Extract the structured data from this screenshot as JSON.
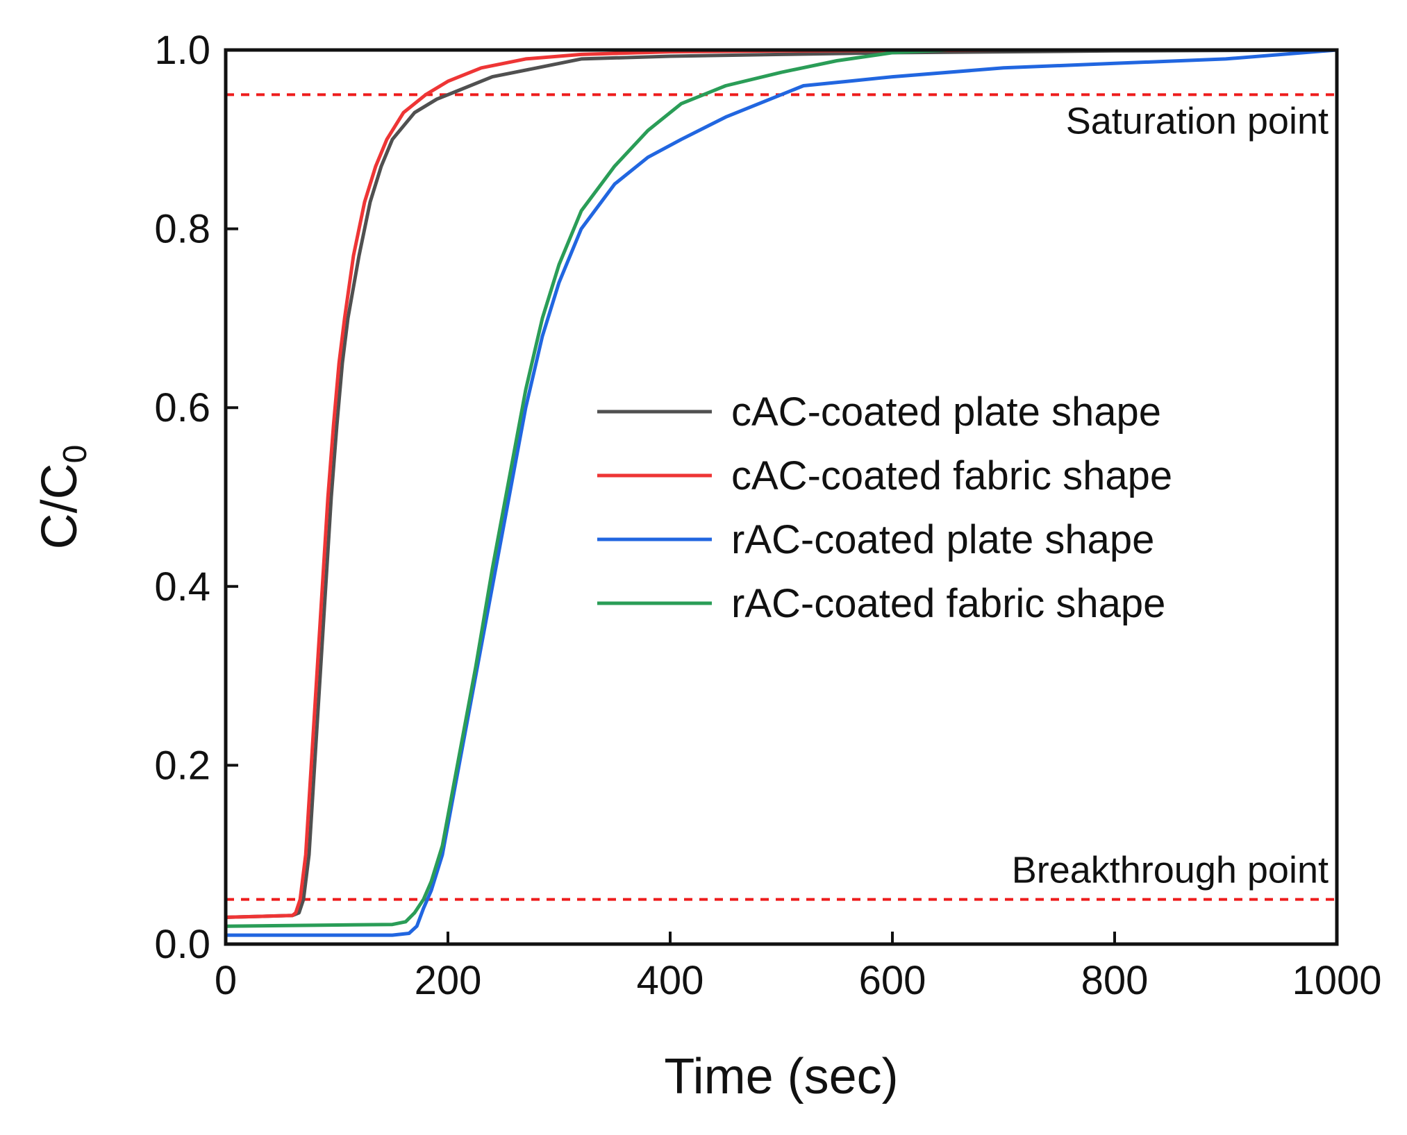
{
  "chart_data": {
    "type": "line",
    "title": "",
    "xlabel": "Time (sec)",
    "ylabel": "C/C",
    "ylabel_subscript": "0",
    "xlim": [
      0,
      1000
    ],
    "ylim": [
      0,
      1.0
    ],
    "x_ticks": [
      0,
      200,
      400,
      600,
      800,
      1000
    ],
    "x_tick_labels": [
      "0",
      "200",
      "400",
      "600",
      "800",
      "1000"
    ],
    "y_ticks": [
      0,
      0.2,
      0.4,
      0.6,
      0.8,
      1.0
    ],
    "y_tick_labels": [
      "0.0",
      "0.2",
      "0.4",
      "0.6",
      "0.8",
      "1.0"
    ],
    "grid": false,
    "legend_position": "center-right",
    "reference_lines": [
      {
        "label": "Saturation point",
        "y": 0.95,
        "color": "#ee1c1c",
        "style": "dashed"
      },
      {
        "label": "Breakthrough point",
        "y": 0.05,
        "color": "#ee1c1c",
        "style": "dashed"
      }
    ],
    "series": [
      {
        "name": "cAC-coated plate shape",
        "color": "#505050",
        "points": [
          [
            0,
            0.03
          ],
          [
            30,
            0.031
          ],
          [
            60,
            0.032
          ],
          [
            66,
            0.035
          ],
          [
            70,
            0.05
          ],
          [
            75,
            0.1
          ],
          [
            80,
            0.2
          ],
          [
            85,
            0.3
          ],
          [
            90,
            0.4
          ],
          [
            95,
            0.5
          ],
          [
            100,
            0.58
          ],
          [
            105,
            0.65
          ],
          [
            110,
            0.7
          ],
          [
            120,
            0.77
          ],
          [
            130,
            0.83
          ],
          [
            140,
            0.87
          ],
          [
            150,
            0.9
          ],
          [
            170,
            0.93
          ],
          [
            190,
            0.945
          ],
          [
            210,
            0.955
          ],
          [
            240,
            0.97
          ],
          [
            280,
            0.98
          ],
          [
            320,
            0.99
          ],
          [
            400,
            0.993
          ],
          [
            500,
            0.995
          ],
          [
            600,
            0.997
          ],
          [
            800,
            0.999
          ],
          [
            1000,
            1.0
          ]
        ]
      },
      {
        "name": "cAC-coated fabric shape",
        "color": "#ee3535",
        "points": [
          [
            0,
            0.03
          ],
          [
            30,
            0.031
          ],
          [
            60,
            0.032
          ],
          [
            63,
            0.035
          ],
          [
            67,
            0.05
          ],
          [
            72,
            0.1
          ],
          [
            77,
            0.2
          ],
          [
            82,
            0.3
          ],
          [
            87,
            0.4
          ],
          [
            92,
            0.5
          ],
          [
            97,
            0.58
          ],
          [
            102,
            0.65
          ],
          [
            107,
            0.7
          ],
          [
            115,
            0.77
          ],
          [
            125,
            0.83
          ],
          [
            135,
            0.87
          ],
          [
            145,
            0.9
          ],
          [
            160,
            0.93
          ],
          [
            180,
            0.95
          ],
          [
            200,
            0.965
          ],
          [
            230,
            0.98
          ],
          [
            270,
            0.99
          ],
          [
            320,
            0.995
          ],
          [
            400,
            0.998
          ],
          [
            500,
            0.999
          ],
          [
            700,
            1.0
          ],
          [
            1000,
            1.0
          ]
        ]
      },
      {
        "name": "rAC-coated plate shape",
        "color": "#2166e0",
        "points": [
          [
            0,
            0.01
          ],
          [
            150,
            0.01
          ],
          [
            165,
            0.012
          ],
          [
            172,
            0.02
          ],
          [
            178,
            0.04
          ],
          [
            185,
            0.06
          ],
          [
            195,
            0.1
          ],
          [
            210,
            0.2
          ],
          [
            225,
            0.3
          ],
          [
            240,
            0.4
          ],
          [
            255,
            0.5
          ],
          [
            270,
            0.6
          ],
          [
            285,
            0.68
          ],
          [
            300,
            0.74
          ],
          [
            320,
            0.8
          ],
          [
            350,
            0.85
          ],
          [
            380,
            0.88
          ],
          [
            410,
            0.9
          ],
          [
            450,
            0.925
          ],
          [
            490,
            0.945
          ],
          [
            520,
            0.96
          ],
          [
            560,
            0.965
          ],
          [
            600,
            0.97
          ],
          [
            700,
            0.98
          ],
          [
            800,
            0.985
          ],
          [
            900,
            0.99
          ],
          [
            1000,
            1.0
          ]
        ]
      },
      {
        "name": "rAC-coated fabric shape",
        "color": "#2a9d57",
        "points": [
          [
            0,
            0.02
          ],
          [
            150,
            0.022
          ],
          [
            162,
            0.025
          ],
          [
            170,
            0.035
          ],
          [
            178,
            0.05
          ],
          [
            185,
            0.07
          ],
          [
            195,
            0.11
          ],
          [
            210,
            0.21
          ],
          [
            225,
            0.31
          ],
          [
            240,
            0.42
          ],
          [
            255,
            0.52
          ],
          [
            270,
            0.62
          ],
          [
            285,
            0.7
          ],
          [
            300,
            0.76
          ],
          [
            320,
            0.82
          ],
          [
            350,
            0.87
          ],
          [
            380,
            0.91
          ],
          [
            410,
            0.94
          ],
          [
            450,
            0.96
          ],
          [
            500,
            0.975
          ],
          [
            550,
            0.988
          ],
          [
            600,
            0.997
          ],
          [
            650,
            1.0
          ],
          [
            1000,
            1.0
          ]
        ]
      }
    ]
  }
}
